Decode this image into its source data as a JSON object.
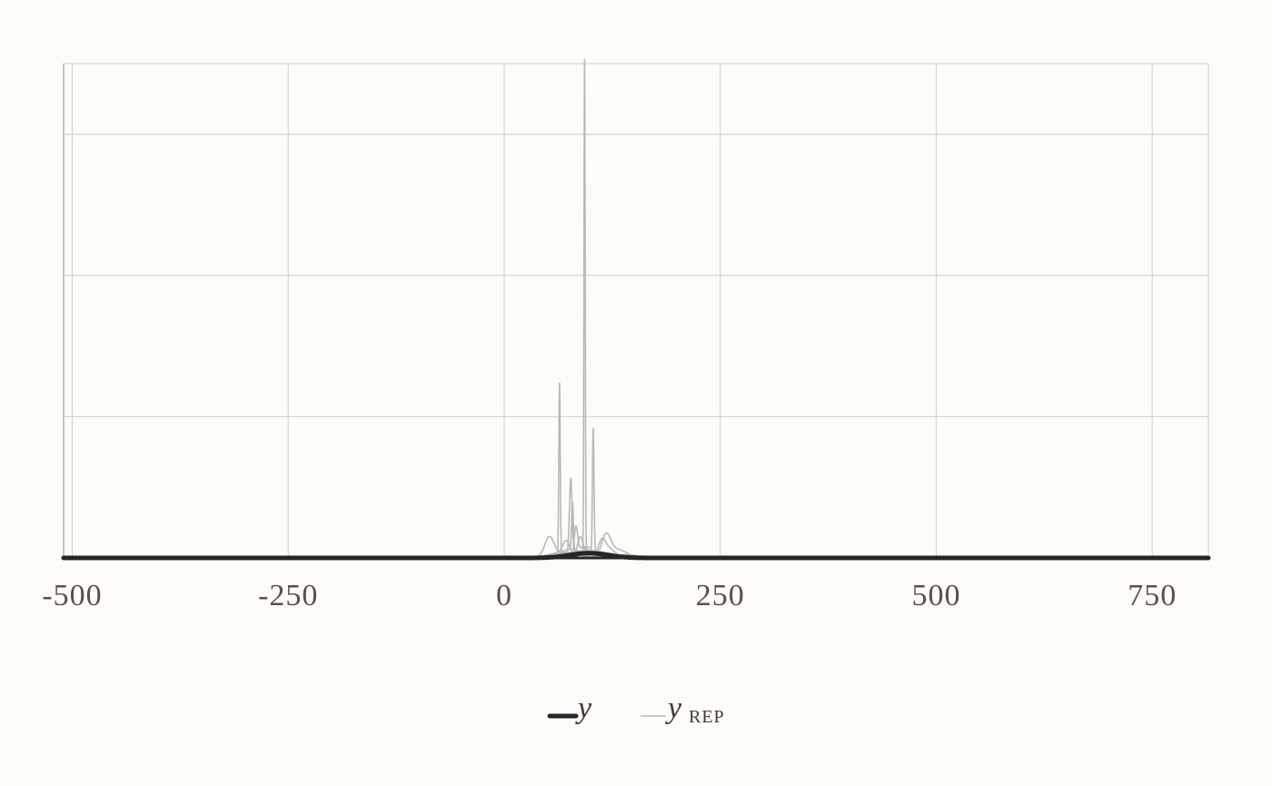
{
  "chart_data": {
    "type": "line",
    "xlim": [
      -510,
      815
    ],
    "ylim": [
      0,
      0.175
    ],
    "x_ticks": [
      -500,
      -250,
      0,
      250,
      500,
      750
    ],
    "x_tick_labels": [
      "-500",
      "-250",
      "0",
      "250",
      "500",
      "750"
    ],
    "y_ticks": [
      0.05,
      0.1,
      0.15
    ],
    "grid": true,
    "legend_position": "bottom",
    "legend": [
      {
        "key": "y",
        "label": "y",
        "subscript": ""
      },
      {
        "key": "yrep",
        "label": "y",
        "subscript": "REP"
      }
    ],
    "colors": {
      "y": "#262626",
      "yrep": "#b9b9b9",
      "grid": "#d6d6d3",
      "tick_text": "#5a5048"
    },
    "series": [
      {
        "role": "y",
        "peaks": [
          {
            "center": 98,
            "height": 0.0017,
            "width": 22
          }
        ]
      },
      {
        "role": "yrep",
        "peaks": [
          {
            "center": 93,
            "height": 0.175,
            "width": 0.7
          },
          {
            "center": 82,
            "height": 0.0015,
            "width": 28
          }
        ]
      },
      {
        "role": "yrep",
        "peaks": [
          {
            "center": 64,
            "height": 0.06,
            "width": 0.8
          },
          {
            "center": 70,
            "height": 0.002,
            "width": 18
          }
        ]
      },
      {
        "role": "yrep",
        "peaks": [
          {
            "center": 103,
            "height": 0.044,
            "width": 0.9
          },
          {
            "center": 110,
            "height": 0.002,
            "width": 20
          }
        ]
      },
      {
        "role": "yrep",
        "peaks": [
          {
            "center": 77,
            "height": 0.026,
            "width": 1.5
          },
          {
            "center": 85,
            "height": 0.0025,
            "width": 14
          }
        ]
      },
      {
        "role": "yrep",
        "peaks": [
          {
            "center": 79,
            "height": 0.017,
            "width": 1.0
          },
          {
            "center": 75,
            "height": 0.003,
            "width": 10
          }
        ]
      },
      {
        "role": "yrep",
        "peaks": [
          {
            "center": 83,
            "height": 0.01,
            "width": 2.0
          },
          {
            "center": 92,
            "height": 0.004,
            "width": 6
          }
        ]
      },
      {
        "role": "yrep",
        "peaks": [
          {
            "center": 118,
            "height": 0.007,
            "width": 5
          },
          {
            "center": 130,
            "height": 0.003,
            "width": 12
          }
        ]
      },
      {
        "role": "yrep",
        "peaks": [
          {
            "center": 52,
            "height": 0.006,
            "width": 5
          },
          {
            "center": 60,
            "height": 0.002,
            "width": 12
          }
        ]
      },
      {
        "role": "yrep",
        "peaks": [
          {
            "center": 88,
            "height": 0.006,
            "width": 3
          },
          {
            "center": 100,
            "height": 0.002,
            "width": 16
          }
        ]
      },
      {
        "role": "yrep",
        "peaks": [
          {
            "center": 113,
            "height": 0.0045,
            "width": 4
          },
          {
            "center": 120,
            "height": 0.0035,
            "width": 8
          }
        ]
      },
      {
        "role": "yrep",
        "peaks": [
          {
            "center": 72,
            "height": 0.0045,
            "width": 4
          },
          {
            "center": 66,
            "height": 0.002,
            "width": 9
          }
        ]
      },
      {
        "role": "yrep",
        "peaks": [
          {
            "center": 96,
            "height": 0.004,
            "width": 6
          },
          {
            "center": 140,
            "height": 0.0012,
            "width": 14
          }
        ]
      },
      {
        "role": "yrep",
        "peaks": [
          {
            "center": 100,
            "height": 0.0025,
            "width": 20
          }
        ]
      },
      {
        "role": "yrep",
        "peaks": [
          {
            "center": 85,
            "height": 0.002,
            "width": 26
          }
        ]
      }
    ]
  }
}
